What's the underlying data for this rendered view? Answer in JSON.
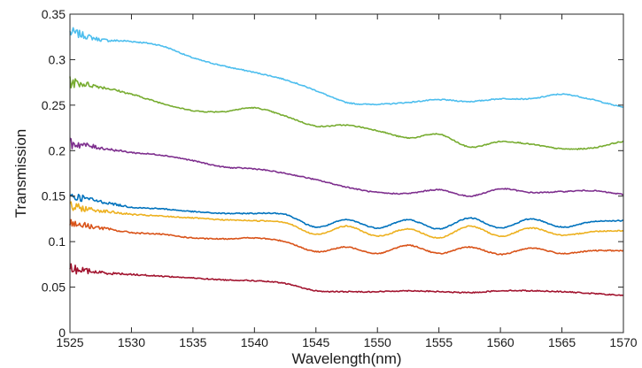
{
  "chart_data": {
    "type": "line",
    "title": "",
    "xlabel": "Wavelength(nm)",
    "ylabel": "Transmission",
    "xlim": [
      1525,
      1570
    ],
    "ylim": [
      0,
      0.35
    ],
    "xticks": [
      1525,
      1530,
      1535,
      1540,
      1545,
      1550,
      1555,
      1560,
      1565,
      1570
    ],
    "yticks": [
      0,
      0.05,
      0.1,
      0.15,
      0.2,
      0.25,
      0.3,
      0.35
    ],
    "xtick_labels": [
      "1525",
      "1530",
      "1535",
      "1540",
      "1545",
      "1550",
      "1555",
      "1560",
      "1565",
      "1570"
    ],
    "ytick_labels": [
      "0",
      "0.05",
      "0.1",
      "0.15",
      "0.2",
      "0.25",
      "0.3",
      "0.35"
    ],
    "grid": false,
    "legend": "none",
    "x": [
      1525,
      1527.5,
      1530,
      1532.5,
      1535,
      1537.5,
      1540,
      1542.5,
      1545,
      1547.5,
      1550,
      1552.5,
      1555,
      1557.5,
      1560,
      1562.5,
      1565,
      1567.5,
      1570
    ],
    "series": [
      {
        "color": "#4DBEEE",
        "values": [
          0.33,
          0.322,
          0.32,
          0.315,
          0.302,
          0.293,
          0.286,
          0.278,
          0.266,
          0.253,
          0.251,
          0.253,
          0.256,
          0.254,
          0.257,
          0.257,
          0.262,
          0.256,
          0.248
        ]
      },
      {
        "color": "#77AC30",
        "values": [
          0.275,
          0.27,
          0.262,
          0.252,
          0.244,
          0.243,
          0.247,
          0.238,
          0.227,
          0.228,
          0.222,
          0.214,
          0.218,
          0.204,
          0.21,
          0.207,
          0.202,
          0.203,
          0.21
        ]
      },
      {
        "color": "#7E2F8E",
        "values": [
          0.208,
          0.203,
          0.198,
          0.195,
          0.189,
          0.182,
          0.18,
          0.175,
          0.168,
          0.16,
          0.154,
          0.153,
          0.157,
          0.15,
          0.158,
          0.154,
          0.155,
          0.156,
          0.152
        ]
      },
      {
        "color": "#0072BD",
        "values": [
          0.15,
          0.144,
          0.138,
          0.136,
          0.133,
          0.131,
          0.131,
          0.13,
          0.116,
          0.124,
          0.115,
          0.124,
          0.114,
          0.126,
          0.115,
          0.125,
          0.116,
          0.122,
          0.123
        ]
      },
      {
        "color": "#EDB120",
        "values": [
          0.138,
          0.134,
          0.13,
          0.128,
          0.126,
          0.124,
          0.123,
          0.121,
          0.108,
          0.117,
          0.106,
          0.114,
          0.104,
          0.117,
          0.106,
          0.115,
          0.107,
          0.111,
          0.112
        ]
      },
      {
        "color": "#D95319",
        "values": [
          0.12,
          0.115,
          0.11,
          0.108,
          0.104,
          0.103,
          0.104,
          0.1,
          0.089,
          0.094,
          0.087,
          0.096,
          0.087,
          0.094,
          0.086,
          0.093,
          0.087,
          0.09,
          0.09
        ]
      },
      {
        "color": "#A2142F",
        "values": [
          0.07,
          0.066,
          0.064,
          0.062,
          0.06,
          0.058,
          0.057,
          0.054,
          0.046,
          0.045,
          0.045,
          0.046,
          0.045,
          0.044,
          0.046,
          0.046,
          0.045,
          0.043,
          0.041
        ]
      }
    ]
  }
}
